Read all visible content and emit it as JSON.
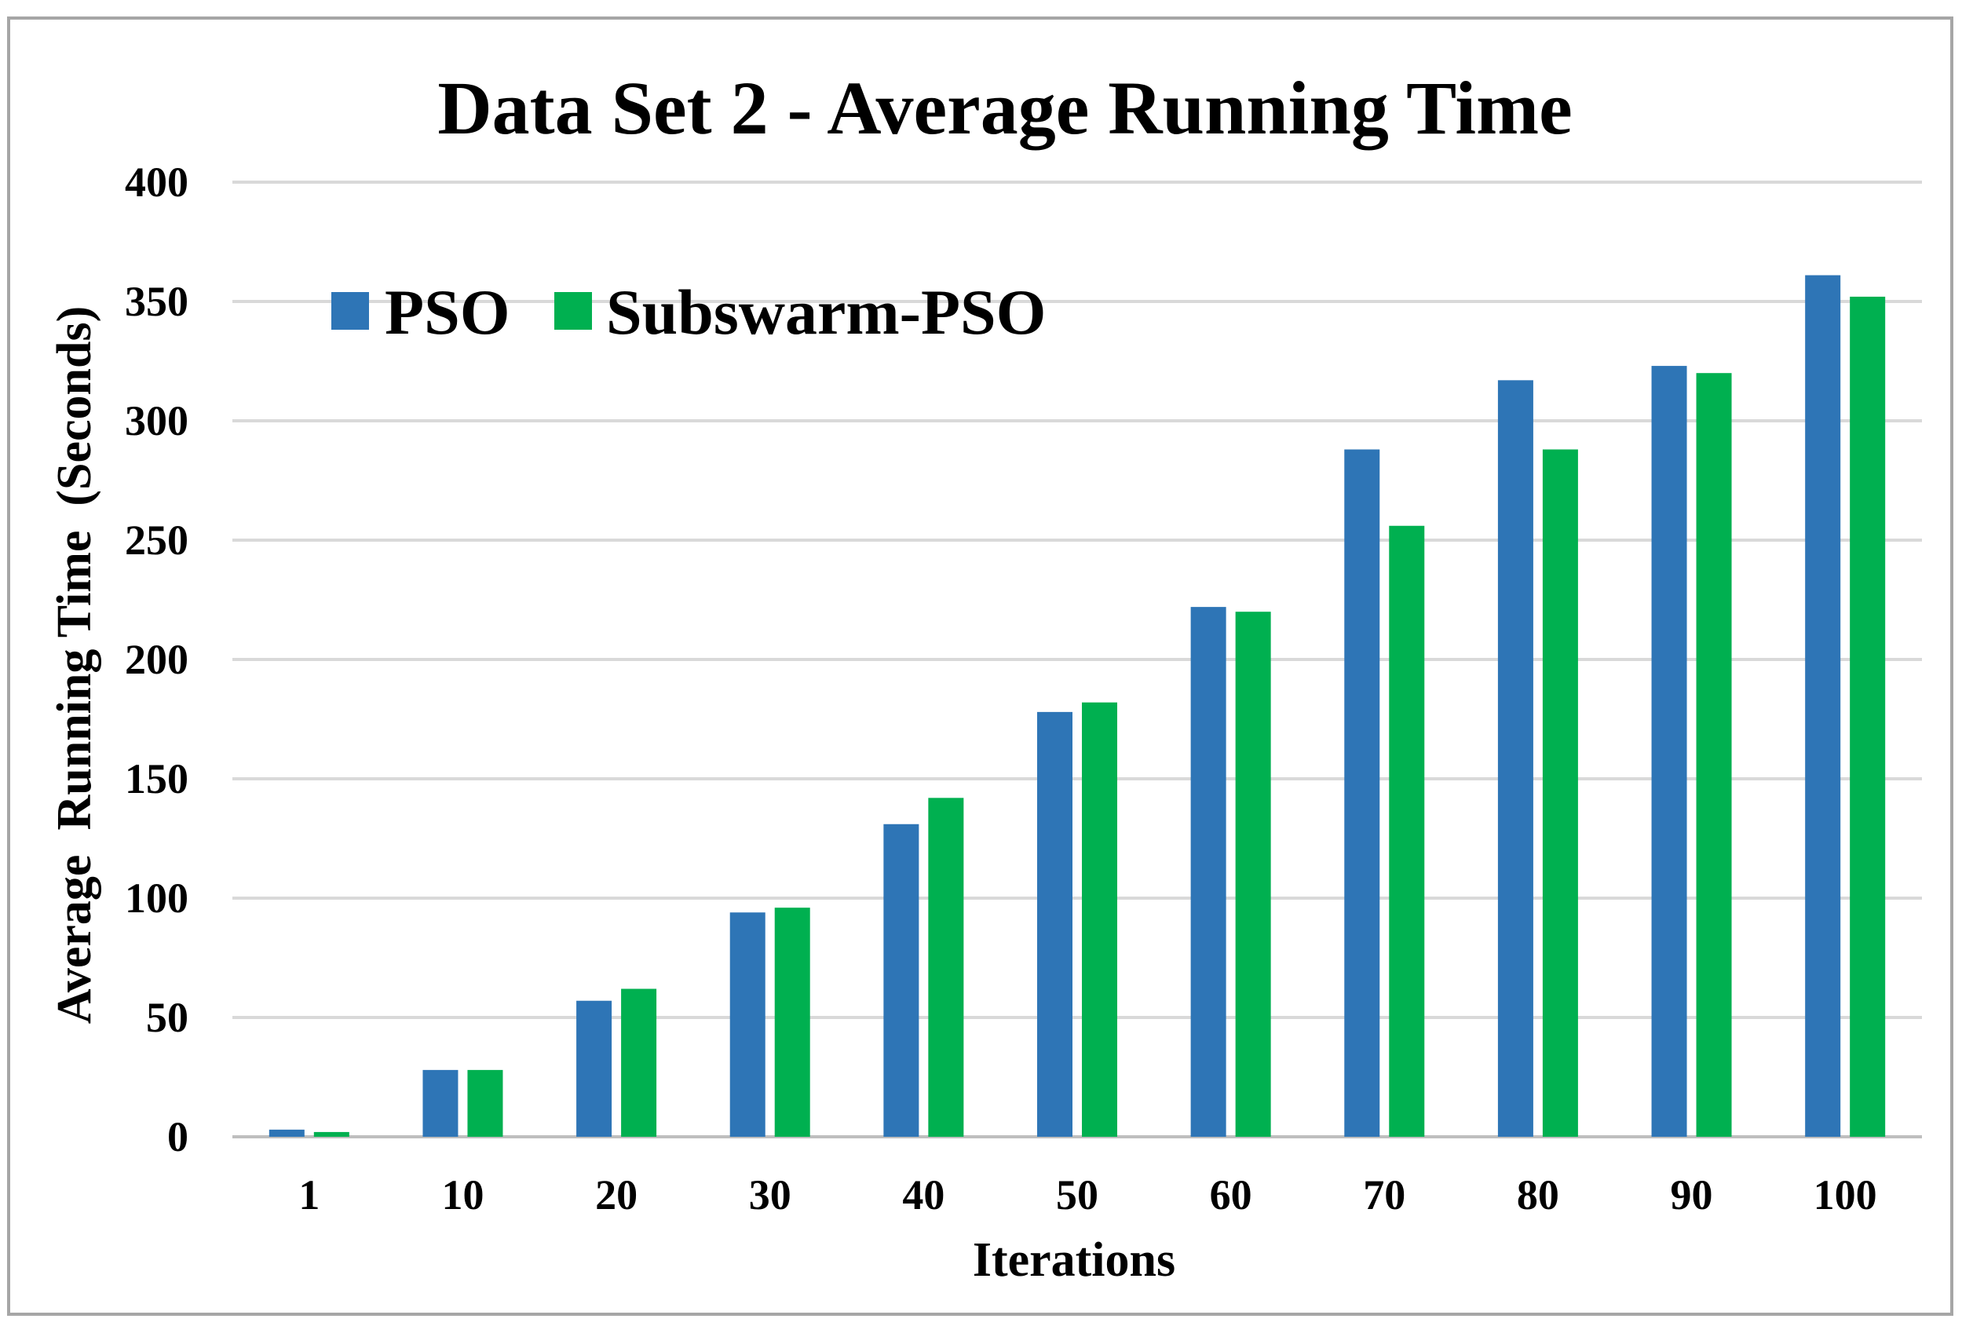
{
  "chart_data": {
    "type": "bar",
    "title": "Data Set 2 - Average Running Time",
    "xlabel": "Iterations",
    "ylabel": "Average  Running Time  (Seconds)",
    "categories": [
      "1",
      "10",
      "20",
      "30",
      "40",
      "50",
      "60",
      "70",
      "80",
      "90",
      "100"
    ],
    "series": [
      {
        "name": "PSO",
        "color": "#2E75B6",
        "values": [
          3,
          28,
          57,
          94,
          131,
          178,
          222,
          288,
          317,
          323,
          361
        ]
      },
      {
        "name": "Subswarm-PSO",
        "color": "#00B050",
        "values": [
          2,
          28,
          62,
          96,
          142,
          182,
          220,
          256,
          288,
          320,
          352
        ]
      }
    ],
    "ylim": [
      0,
      400
    ],
    "yticks": [
      0,
      50,
      100,
      150,
      200,
      250,
      300,
      350,
      400
    ],
    "grid": true,
    "legend_position": "top-left"
  }
}
